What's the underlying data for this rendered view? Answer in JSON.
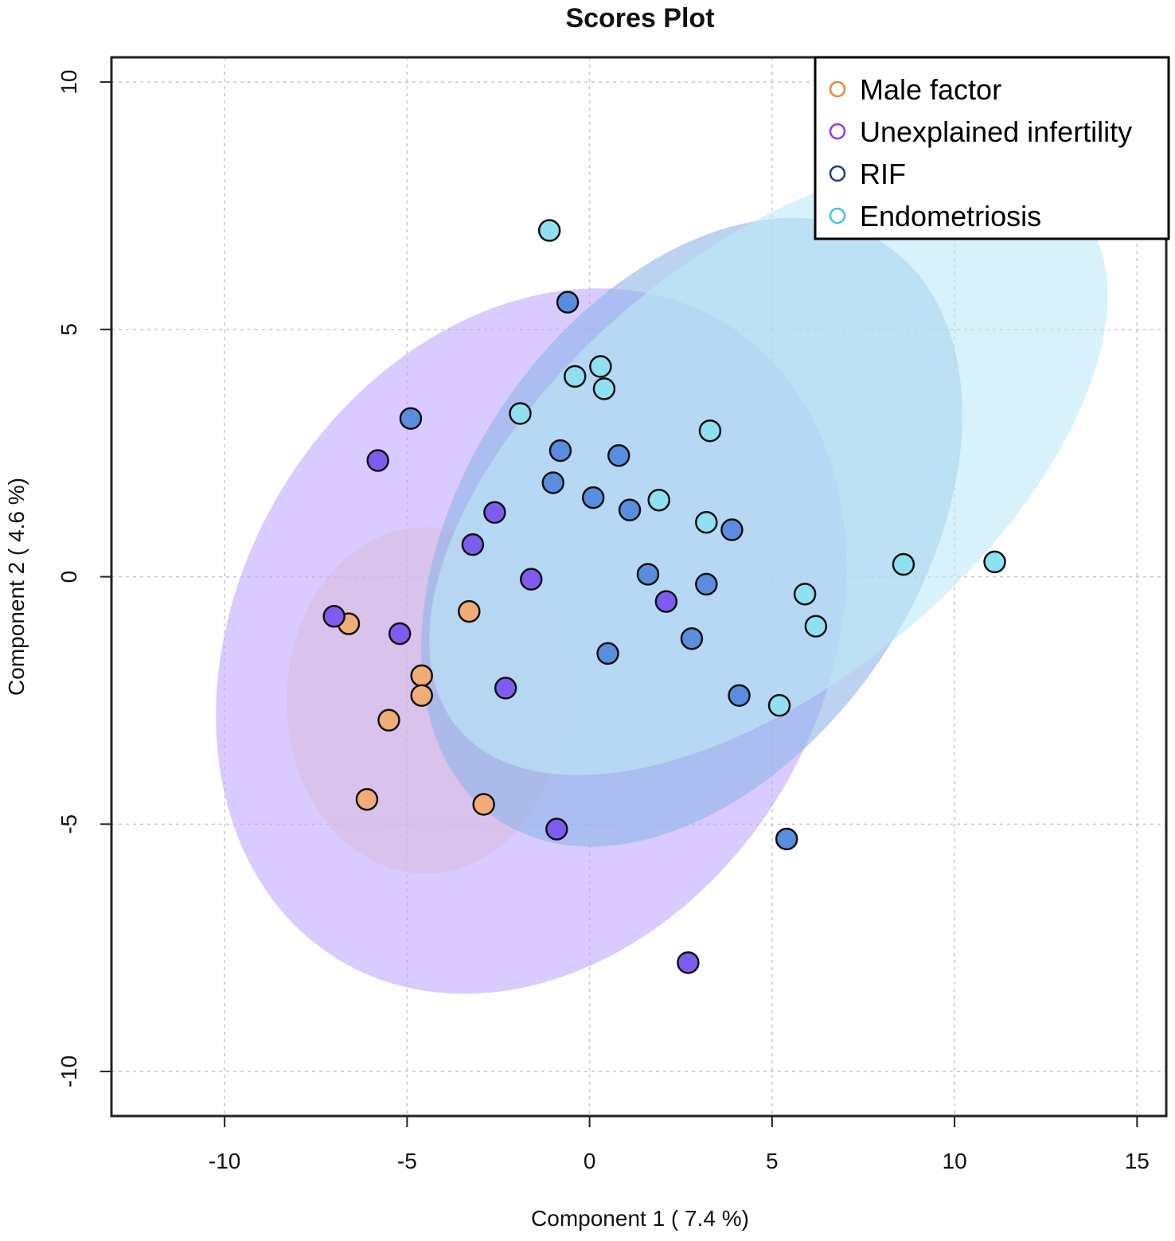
{
  "chart_data": {
    "type": "scatter",
    "title": "Scores Plot",
    "xlabel": "Component 1 ( 7.4 %)",
    "ylabel": "Component 2 ( 4.6 %)",
    "xlim": [
      -13.1,
      15.8
    ],
    "ylim": [
      -10.9,
      10.5
    ],
    "xticks": [
      -10,
      -5,
      0,
      5,
      10,
      15
    ],
    "yticks": [
      -10,
      -5,
      0,
      5,
      10
    ],
    "xtick_labels": [
      "-10",
      "-5",
      "0",
      "5",
      "10",
      "15"
    ],
    "ytick_labels": [
      "-10",
      "-5",
      "0",
      "5",
      "10"
    ],
    "grid": true,
    "legend_position": "top-right",
    "series": [
      {
        "name": "Male factor",
        "color": "#E8833A",
        "point_fill": "#F2AC78",
        "ellipse_fill": "#FFD8AD",
        "ellipse": {
          "cx": -4.5,
          "cy": -2.5,
          "rx": 3.8,
          "ry": 3.5,
          "angle_deg": 0
        },
        "points": [
          {
            "x": -6.6,
            "y": -0.95
          },
          {
            "x": -3.3,
            "y": -0.7
          },
          {
            "x": -4.6,
            "y": -2.0
          },
          {
            "x": -4.6,
            "y": -2.4
          },
          {
            "x": -5.5,
            "y": -2.9
          },
          {
            "x": -6.1,
            "y": -4.5
          },
          {
            "x": -2.9,
            "y": -4.6
          }
        ]
      },
      {
        "name": "Unexplained infertility",
        "color": "#9B30FF",
        "point_fill": "#7F5CF0",
        "ellipse_fill": "#BFA8FF",
        "ellipse": {
          "cx": -1.6,
          "cy": -1.3,
          "rx": 10.2,
          "ry": 5.9,
          "angle_deg": -59
        },
        "points": [
          {
            "x": -5.8,
            "y": 2.35
          },
          {
            "x": -2.6,
            "y": 1.3
          },
          {
            "x": -3.2,
            "y": 0.65
          },
          {
            "x": -1.6,
            "y": -0.05
          },
          {
            "x": -7.0,
            "y": -0.8
          },
          {
            "x": -5.2,
            "y": -1.15
          },
          {
            "x": -2.3,
            "y": -2.25
          },
          {
            "x": 2.1,
            "y": -0.5
          },
          {
            "x": -0.9,
            "y": -5.1
          },
          {
            "x": 2.7,
            "y": -7.8
          }
        ]
      },
      {
        "name": "RIF",
        "color": "#1F3A93",
        "point_fill": "#5B8DDE",
        "ellipse_fill": "#8EB4E8",
        "ellipse": {
          "cx": 2.8,
          "cy": 0.9,
          "rx": 9.5,
          "ry": 4.6,
          "angle_deg": -56
        },
        "points": [
          {
            "x": -0.6,
            "y": 5.55
          },
          {
            "x": -4.9,
            "y": 3.2
          },
          {
            "x": -0.8,
            "y": 2.55
          },
          {
            "x": 0.8,
            "y": 2.45
          },
          {
            "x": -1.0,
            "y": 1.9
          },
          {
            "x": 0.1,
            "y": 1.6
          },
          {
            "x": 1.1,
            "y": 1.35
          },
          {
            "x": 3.9,
            "y": 0.95
          },
          {
            "x": 1.6,
            "y": 0.05
          },
          {
            "x": 3.2,
            "y": -0.15
          },
          {
            "x": 2.8,
            "y": -1.25
          },
          {
            "x": 0.5,
            "y": -1.55
          },
          {
            "x": 4.1,
            "y": -2.4
          },
          {
            "x": 5.4,
            "y": -5.3
          }
        ]
      },
      {
        "name": "Endometriosis",
        "color": "#3EC7DC",
        "point_fill": "#8FE0F0",
        "ellipse_fill": "#BCEAF7",
        "ellipse": {
          "cx": 4.9,
          "cy": 2.2,
          "rx": 11.1,
          "ry": 4.3,
          "angle_deg": -40
        },
        "points": [
          {
            "x": -1.1,
            "y": 7.0
          },
          {
            "x": 0.3,
            "y": 4.25
          },
          {
            "x": -0.4,
            "y": 4.05
          },
          {
            "x": 0.4,
            "y": 3.8
          },
          {
            "x": -1.9,
            "y": 3.3
          },
          {
            "x": 3.3,
            "y": 2.95
          },
          {
            "x": 1.9,
            "y": 1.55
          },
          {
            "x": 3.2,
            "y": 1.1
          },
          {
            "x": 8.6,
            "y": 0.25
          },
          {
            "x": 11.1,
            "y": 0.3
          },
          {
            "x": 5.9,
            "y": -0.35
          },
          {
            "x": 6.2,
            "y": -1.0
          },
          {
            "x": 5.2,
            "y": -2.6
          }
        ]
      }
    ]
  }
}
